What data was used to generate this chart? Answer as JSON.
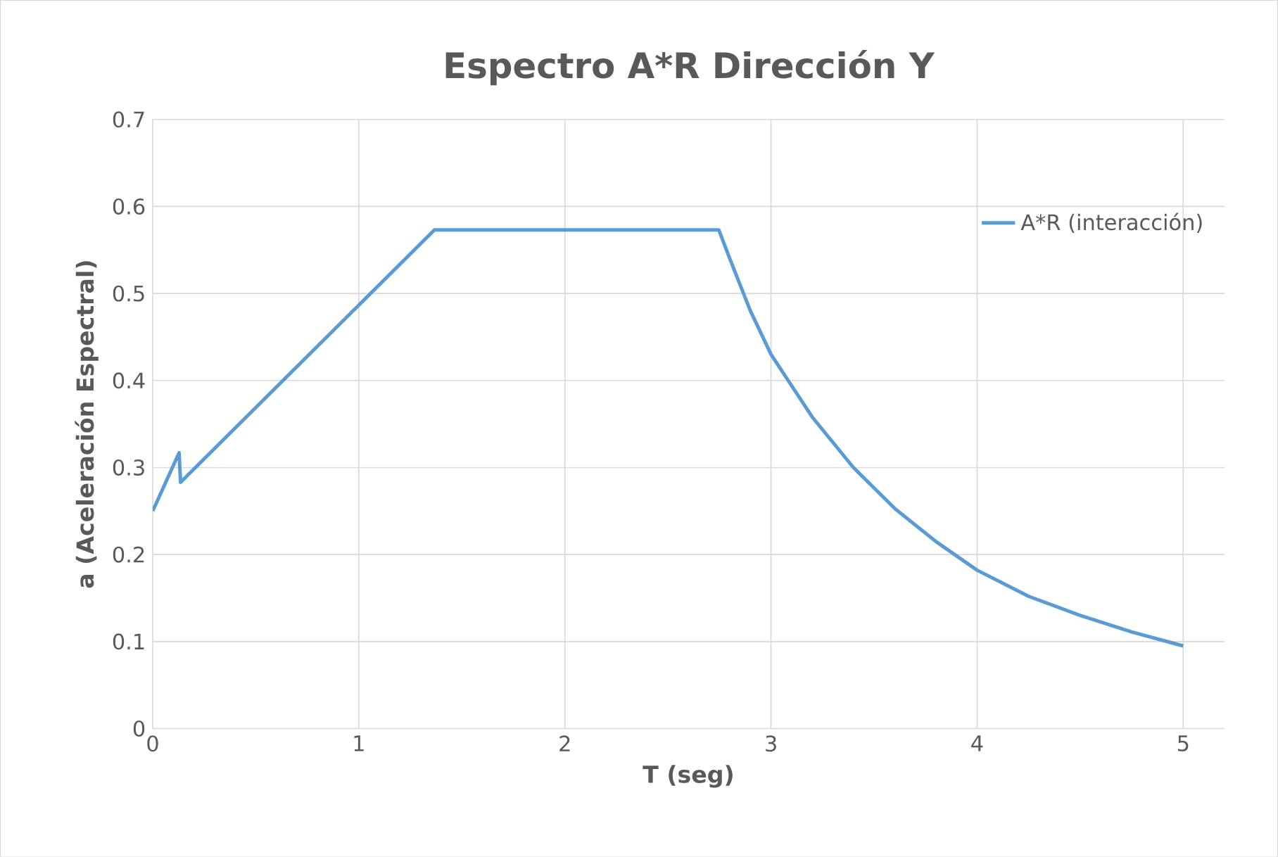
{
  "chart_data": {
    "type": "line",
    "title": "Espectro A*R Dirección Y",
    "xlabel": "T (seg)",
    "ylabel": "a  (Aceleración  Espectral)",
    "xlim": [
      0,
      5.2
    ],
    "ylim": [
      0,
      0.7
    ],
    "xticks": [
      0,
      1,
      2,
      3,
      4,
      5
    ],
    "yticks": [
      0,
      0.1,
      0.2,
      0.3,
      0.4,
      0.5,
      0.6,
      0.7
    ],
    "grid": true,
    "legend": "top right",
    "marker": "none",
    "line_style": "solid",
    "series": [
      {
        "name": "A*R (interacción)",
        "color": "#5b9bd5",
        "x": [
          0,
          0.128,
          0.135,
          1.367,
          2.747,
          2.8,
          2.9,
          3.0,
          3.2,
          3.4,
          3.6,
          3.8,
          4.0,
          4.25,
          4.5,
          4.75,
          5.0
        ],
        "values": [
          0.25,
          0.317,
          0.283,
          0.573,
          0.573,
          0.54,
          0.48,
          0.43,
          0.358,
          0.3,
          0.253,
          0.215,
          0.182,
          0.152,
          0.13,
          0.111,
          0.095
        ]
      }
    ]
  }
}
